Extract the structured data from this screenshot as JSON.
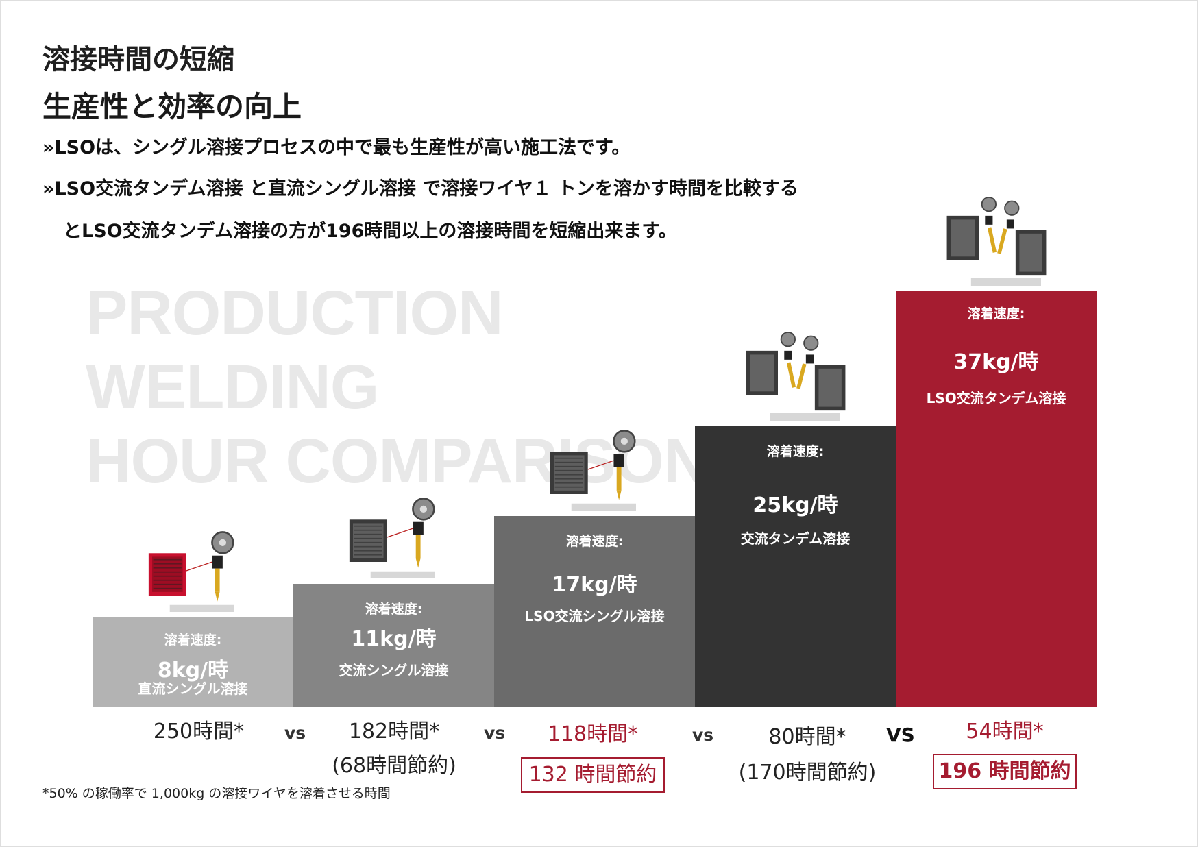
{
  "header": {
    "title": "溶接時間の短縮",
    "subtitle": "生産性と効率の向上",
    "bullets": [
      "»LSOは、シングル溶接プロセスの中で最も生産性が高い施工法です。",
      "»LSO交流タンデム溶接 と直流シングル溶接 で溶接ワイヤ１ トンを溶かす時間を比較する",
      "とLSO交流タンデム溶接の方が196時間以上の溶接時間を短縮出来ます。"
    ]
  },
  "watermark": [
    "PRODUCTION",
    "WELDING",
    "HOUR COMPARISON"
  ],
  "colors": {
    "accent": "#a51c30",
    "bar_1": "#b3b3b3",
    "bar_2": "#858585",
    "bar_3": "#6b6b6b",
    "bar_4": "#333333",
    "bar_5": "#a51c30"
  },
  "chart_data": {
    "type": "bar",
    "categories": [
      "直流シングル溶接",
      "交流シングル溶接",
      "LSO交流シングル溶接",
      "交流タンデム溶接",
      "LSO交流タンデム溶接"
    ],
    "series": [
      {
        "values": [
          8,
          11,
          17,
          25,
          37
        ]
      }
    ],
    "rate_labels": [
      "溶着速度:",
      "溶着速度:",
      "溶着速度:",
      "溶着速度:",
      "溶着速度:"
    ],
    "value_labels": [
      "8kg/時",
      "11kg/時",
      "17kg/時",
      "25kg/時",
      "37kg/時"
    ],
    "hours": [
      250,
      182,
      118,
      80,
      54
    ],
    "hours_labels": [
      "250時間*",
      "182時間*",
      "118時間*",
      "80時間*",
      "54時間*"
    ],
    "savings": [
      null,
      68,
      132,
      170,
      196
    ],
    "savings_labels": [
      "",
      "(68時間節約)",
      "132 時間節約",
      "(170時間節約)",
      "196 時間節約"
    ],
    "highlighted": [
      false,
      false,
      true,
      false,
      true
    ],
    "vs_labels": [
      "vs",
      "vs",
      "vs",
      "VS"
    ],
    "ylim": [
      0,
      37
    ]
  },
  "illustrations": [
    "single-welder-red-icon",
    "single-welder-grey-icon",
    "single-welder-dark-icon",
    "tandem-welder-icon",
    "tandem-welder-icon"
  ],
  "footnote": "*50% の稼働率で 1,000kg の溶接ワイヤを溶着させる時間"
}
